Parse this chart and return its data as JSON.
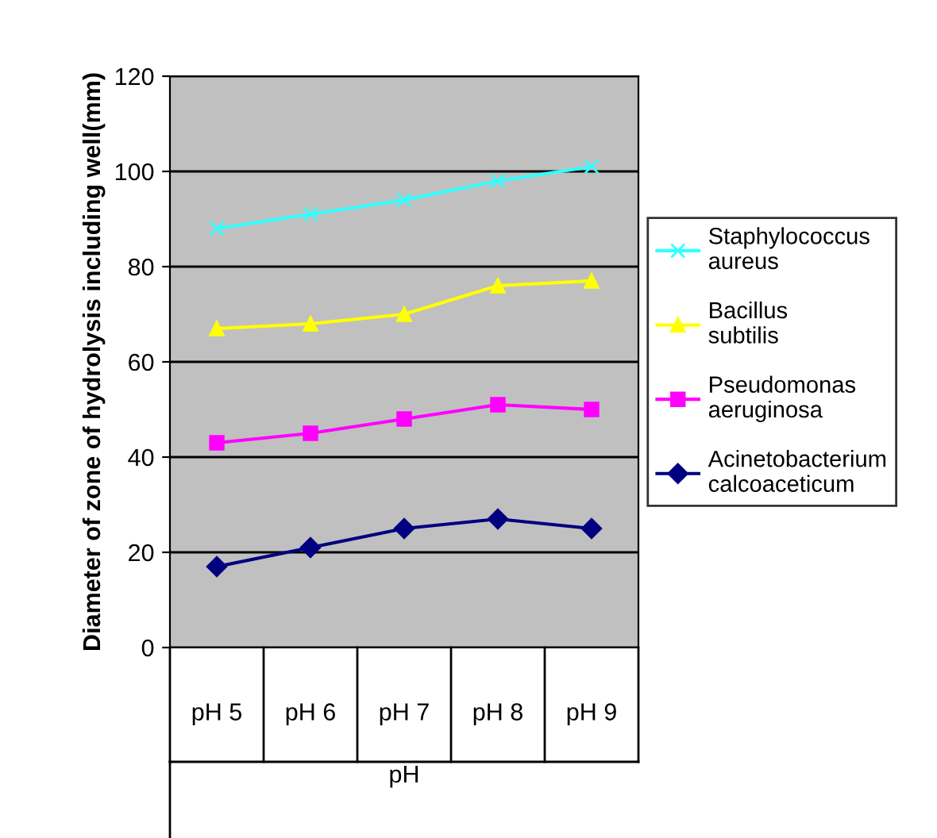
{
  "chart_data": {
    "type": "line",
    "xlabel": "pH",
    "ylabel": "Diameter of zone of hydrolysis including well(mm)",
    "categories": [
      "pH 5",
      "pH 6",
      "pH 7",
      "pH 8",
      "pH 9"
    ],
    "series": [
      {
        "name": "Staphylococcus aureus",
        "color": "#33ffff",
        "marker": "cross",
        "values": [
          88,
          91,
          94,
          98,
          101
        ]
      },
      {
        "name": "Bacillus subtilis",
        "color": "#ffff00",
        "marker": "triangle",
        "values": [
          67,
          68,
          70,
          76,
          77
        ]
      },
      {
        "name": "Pseudomonas aeruginosa",
        "color": "#ff00ff",
        "marker": "square",
        "values": [
          43,
          45,
          48,
          51,
          50
        ]
      },
      {
        "name": "Acinetobacterium calcoaceticum",
        "color": "#000080",
        "marker": "diamond",
        "values": [
          17,
          21,
          25,
          27,
          25
        ]
      }
    ],
    "ylim": [
      0,
      120
    ],
    "yticks": [
      0,
      20,
      40,
      60,
      80,
      100,
      120
    ],
    "grid": "y",
    "legend": "right"
  }
}
